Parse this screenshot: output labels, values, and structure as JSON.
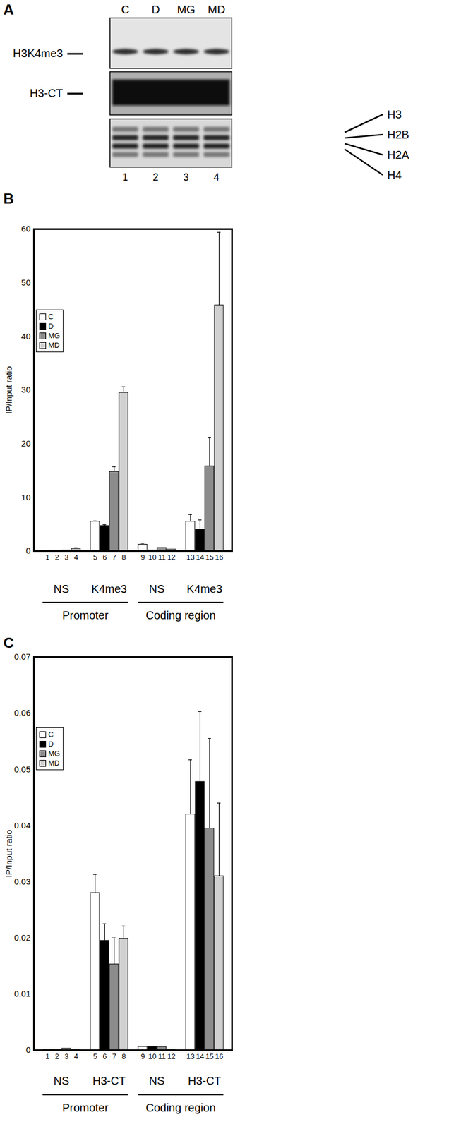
{
  "blot": {
    "panel_label": "A",
    "lanes": [
      "C",
      "D",
      "MG",
      "MD"
    ],
    "lane_numbers": [
      1,
      2,
      3,
      4
    ],
    "left_labels": [
      "H3K4me3",
      "H3-CT"
    ],
    "right_labels": [
      "H3",
      "H2B",
      "H2A",
      "H4"
    ]
  },
  "chart_data": [
    {
      "panel_label": "B",
      "type": "bar",
      "ylabel": "IP/Input ratio",
      "categories": [
        "1",
        "2",
        "3",
        "4",
        "5",
        "6",
        "7",
        "8",
        "9",
        "10",
        "11",
        "12",
        "13",
        "14",
        "15",
        "16"
      ],
      "ylim": [
        0,
        60
      ],
      "yticks": [
        0,
        10,
        20,
        30,
        40,
        50,
        60
      ],
      "legend": "top-left",
      "category_groups": [
        [
          {
            "label": "NS",
            "categories": [
              "1",
              "2",
              "3",
              "4"
            ]
          },
          {
            "label": "K4me3",
            "categories": [
              "5",
              "6",
              "7",
              "8"
            ]
          },
          {
            "label": "NS",
            "categories": [
              "9",
              "10",
              "11",
              "12"
            ]
          },
          {
            "label": "K4me3",
            "categories": [
              "13",
              "14",
              "15",
              "16"
            ]
          }
        ],
        [
          {
            "label": "Promoter",
            "categories": [
              "1",
              "2",
              "3",
              "4",
              "5",
              "6",
              "7",
              "8"
            ]
          },
          {
            "label": "Coding region",
            "categories": [
              "9",
              "10",
              "11",
              "12",
              "13",
              "14",
              "15",
              "16"
            ]
          }
        ]
      ],
      "series": [
        {
          "name": "C",
          "color": "#ffffff",
          "values": [
            0.1,
            null,
            null,
            null,
            5.5,
            null,
            null,
            null,
            1.2,
            null,
            null,
            null,
            5.5,
            null,
            null,
            null
          ],
          "errors": [
            null,
            null,
            null,
            null,
            0.1,
            null,
            null,
            null,
            0.25,
            null,
            null,
            null,
            1.3,
            null,
            null,
            null
          ]
        },
        {
          "name": "D",
          "color": "#000000",
          "values": [
            null,
            0.1,
            null,
            null,
            null,
            4.7,
            null,
            null,
            null,
            0.15,
            null,
            null,
            null,
            4.0,
            null,
            null
          ],
          "errors": [
            null,
            null,
            null,
            null,
            null,
            0.2,
            null,
            null,
            null,
            null,
            null,
            null,
            null,
            1.8,
            null,
            null
          ]
        },
        {
          "name": "MG",
          "color": "#8c8c8c",
          "values": [
            null,
            null,
            0.15,
            null,
            null,
            null,
            14.8,
            null,
            null,
            null,
            0.6,
            null,
            null,
            null,
            15.8,
            null
          ],
          "errors": [
            null,
            null,
            null,
            null,
            null,
            null,
            0.9,
            null,
            null,
            null,
            null,
            null,
            null,
            null,
            5.3,
            null
          ]
        },
        {
          "name": "MD",
          "color": "#d0d0d0",
          "values": [
            null,
            null,
            null,
            0.4,
            null,
            null,
            null,
            29.5,
            null,
            null,
            null,
            0.3,
            null,
            null,
            null,
            45.8
          ],
          "errors": [
            null,
            null,
            null,
            0.2,
            null,
            null,
            null,
            1.1,
            null,
            null,
            null,
            null,
            null,
            null,
            null,
            13.6
          ]
        }
      ]
    },
    {
      "panel_label": "C",
      "type": "bar",
      "ylabel": "IP/Input ratio",
      "categories": [
        "1",
        "2",
        "3",
        "4",
        "5",
        "6",
        "7",
        "8",
        "9",
        "10",
        "11",
        "12",
        "13",
        "14",
        "15",
        "16"
      ],
      "ylim": [
        0,
        0.07
      ],
      "yticks": [
        0,
        0.01,
        0.02,
        0.03,
        0.04,
        0.05,
        0.06,
        0.07
      ],
      "legend": "top-left",
      "category_groups": [
        [
          {
            "label": "NS",
            "categories": [
              "1",
              "2",
              "3",
              "4"
            ]
          },
          {
            "label": "H3-CT",
            "categories": [
              "5",
              "6",
              "7",
              "8"
            ]
          },
          {
            "label": "NS",
            "categories": [
              "9",
              "10",
              "11",
              "12"
            ]
          },
          {
            "label": "H3-CT",
            "categories": [
              "13",
              "14",
              "15",
              "16"
            ]
          }
        ],
        [
          {
            "label": "Promoter",
            "categories": [
              "1",
              "2",
              "3",
              "4",
              "5",
              "6",
              "7",
              "8"
            ]
          },
          {
            "label": "Coding region",
            "categories": [
              "9",
              "10",
              "11",
              "12",
              "13",
              "14",
              "15",
              "16"
            ]
          }
        ]
      ],
      "series": [
        {
          "name": "C",
          "color": "#ffffff",
          "values": [
            0.0001,
            null,
            null,
            null,
            0.028,
            null,
            null,
            null,
            0.0006,
            null,
            null,
            null,
            0.042,
            null,
            null,
            null
          ],
          "errors": [
            null,
            null,
            null,
            null,
            0.0033,
            null,
            null,
            null,
            null,
            null,
            null,
            null,
            0.0097,
            null,
            null,
            null
          ]
        },
        {
          "name": "D",
          "color": "#000000",
          "values": [
            null,
            0.0001,
            null,
            null,
            null,
            0.0195,
            null,
            null,
            null,
            0.0006,
            null,
            null,
            null,
            0.0478,
            null,
            null
          ],
          "errors": [
            null,
            null,
            null,
            null,
            null,
            0.003,
            null,
            null,
            null,
            null,
            null,
            null,
            null,
            0.0125,
            null,
            null
          ]
        },
        {
          "name": "MG",
          "color": "#8c8c8c",
          "values": [
            null,
            null,
            0.0003,
            null,
            null,
            null,
            0.0153,
            null,
            null,
            null,
            0.0006,
            null,
            null,
            null,
            0.0395,
            null
          ],
          "errors": [
            null,
            null,
            null,
            null,
            null,
            null,
            0.0047,
            null,
            null,
            null,
            null,
            null,
            null,
            null,
            0.016,
            null
          ]
        },
        {
          "name": "MD",
          "color": "#d0d0d0",
          "values": [
            null,
            null,
            null,
            0.0001,
            null,
            null,
            null,
            0.0198,
            null,
            null,
            null,
            0.0001,
            null,
            null,
            null,
            0.031
          ],
          "errors": [
            null,
            null,
            null,
            null,
            null,
            null,
            null,
            0.0023,
            null,
            null,
            null,
            null,
            null,
            null,
            null,
            0.013
          ]
        }
      ]
    }
  ]
}
